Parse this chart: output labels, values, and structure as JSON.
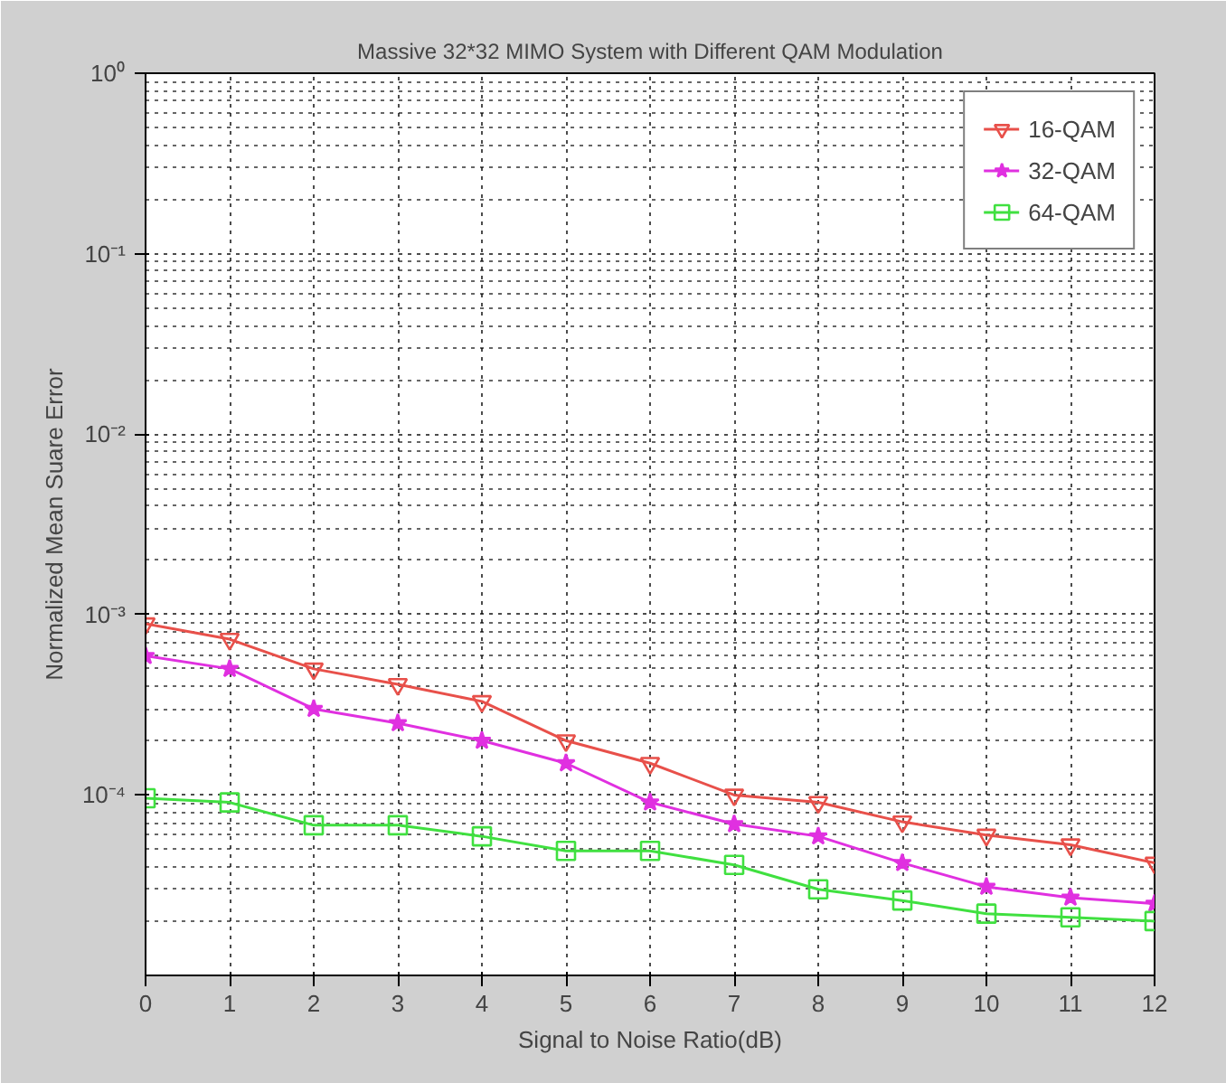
{
  "chart_data": {
    "type": "line",
    "title": "Massive 32*32 MIMO System with Different QAM Modulation",
    "xlabel": "Signal to Noise Ratio(dB)",
    "ylabel": "Normalized Mean Suare Error",
    "x": [
      0,
      1,
      2,
      3,
      4,
      5,
      6,
      7,
      8,
      9,
      10,
      11,
      12
    ],
    "series": [
      {
        "name": "16-QAM",
        "color": "#e8504a",
        "marker": "triangle",
        "values": [
          0.00089,
          0.00073,
          0.0005,
          0.00041,
          0.00033,
          0.0002,
          0.00015,
          0.0001,
          9.1e-05,
          7.1e-05,
          6e-05,
          5.3e-05,
          4.2e-05
        ]
      },
      {
        "name": "32-QAM",
        "color": "#e030e0",
        "marker": "star",
        "values": [
          0.00059,
          0.0005,
          0.0003,
          0.00025,
          0.0002,
          0.00015,
          9.1e-05,
          6.9e-05,
          5.9e-05,
          4.2e-05,
          3.1e-05,
          2.7e-05,
          2.5e-05
        ]
      },
      {
        "name": "64-QAM",
        "color": "#40e040",
        "marker": "square",
        "values": [
          9.6e-05,
          9.1e-05,
          6.8e-05,
          6.8e-05,
          5.9e-05,
          4.9e-05,
          4.9e-05,
          4.1e-05,
          3e-05,
          2.6e-05,
          2.2e-05,
          2.1e-05,
          2e-05
        ]
      }
    ],
    "log": "y",
    "xlim": [
      0,
      12
    ],
    "xticks": [
      0,
      1,
      2,
      3,
      4,
      5,
      6,
      7,
      8,
      9,
      10,
      11,
      12
    ],
    "ylim": [
      1e-05,
      1
    ],
    "yticks": [
      {
        "value": 1,
        "label": "10⁰"
      },
      {
        "value": 0.1,
        "label": "10⁻¹"
      },
      {
        "value": 0.01,
        "label": "10⁻²"
      },
      {
        "value": 0.001,
        "label": "10⁻³"
      },
      {
        "value": 0.0001,
        "label": "10⁻⁴"
      }
    ],
    "grid": true,
    "legend": "top right",
    "line_style": "solid"
  }
}
